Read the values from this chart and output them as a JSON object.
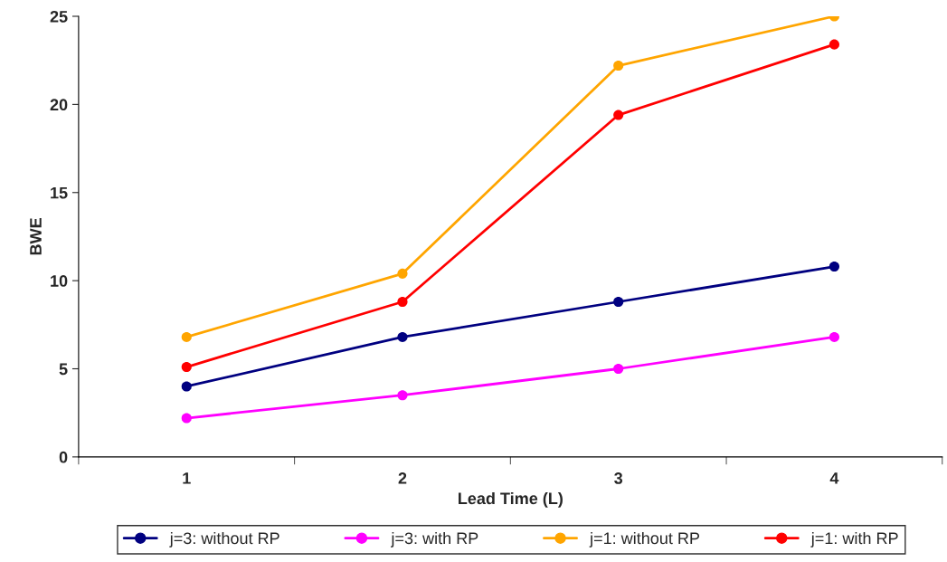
{
  "chart_data": {
    "type": "line",
    "xlabel": "Lead Time (L)",
    "ylabel": "BWE",
    "categories": [
      "1",
      "2",
      "3",
      "4"
    ],
    "series": [
      {
        "name": "j=3: without RP",
        "color": "#000080",
        "values": [
          4.0,
          6.8,
          8.8,
          10.8
        ]
      },
      {
        "name": "j=3: with RP",
        "color": "#ff00ff",
        "values": [
          2.2,
          3.5,
          5.0,
          6.8
        ]
      },
      {
        "name": "j=1: without RP",
        "color": "#ffa500",
        "values": [
          6.8,
          10.4,
          22.2,
          25.0
        ]
      },
      {
        "name": "j=1: with RP",
        "color": "#ff0000",
        "values": [
          5.1,
          8.8,
          19.4,
          23.4
        ]
      }
    ],
    "ylim": [
      0,
      25
    ],
    "yticks": [
      0,
      5,
      10,
      15,
      20,
      25
    ],
    "grid": false,
    "legend": "bottom",
    "marker": "circle",
    "line_style": "solid"
  }
}
